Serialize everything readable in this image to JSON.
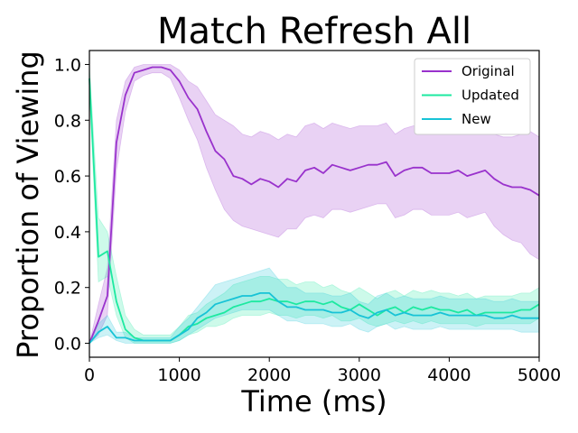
{
  "chart_data": {
    "type": "line",
    "title": "Match Refresh All",
    "xlabel": "Time (ms)",
    "ylabel": "Proportion of Viewing",
    "xlim": [
      0,
      5000
    ],
    "ylim": [
      -0.05,
      1.05
    ],
    "xticks": [
      0,
      1000,
      2000,
      3000,
      4000,
      5000
    ],
    "xtick_labels": [
      "0",
      "1000",
      "2000",
      "3000",
      "4000",
      "5000"
    ],
    "yticks": [
      0.0,
      0.2,
      0.4,
      0.6,
      0.8,
      1.0
    ],
    "ytick_labels": [
      "0.0",
      "0.2",
      "0.4",
      "0.6",
      "0.8",
      "1.0"
    ],
    "grid": false,
    "legend_position": "top-right",
    "x": [
      0,
      100,
      200,
      300,
      400,
      500,
      600,
      700,
      800,
      900,
      1000,
      1100,
      1200,
      1300,
      1400,
      1500,
      1600,
      1700,
      1800,
      1900,
      2000,
      2100,
      2200,
      2300,
      2400,
      2500,
      2600,
      2700,
      2800,
      2900,
      3000,
      3100,
      3200,
      3300,
      3400,
      3500,
      3600,
      3700,
      3800,
      3900,
      4000,
      4100,
      4200,
      4300,
      4400,
      4500,
      4600,
      4700,
      4800,
      4900,
      5000
    ],
    "series": [
      {
        "name": "Original",
        "color": "#9932CC",
        "values": [
          0.0,
          0.08,
          0.17,
          0.72,
          0.89,
          0.97,
          0.98,
          0.99,
          0.99,
          0.98,
          0.94,
          0.88,
          0.84,
          0.76,
          0.69,
          0.66,
          0.6,
          0.59,
          0.57,
          0.59,
          0.58,
          0.56,
          0.59,
          0.58,
          0.62,
          0.63,
          0.61,
          0.64,
          0.63,
          0.62,
          0.63,
          0.64,
          0.64,
          0.65,
          0.6,
          0.62,
          0.63,
          0.63,
          0.61,
          0.61,
          0.61,
          0.62,
          0.6,
          0.61,
          0.62,
          0.59,
          0.57,
          0.56,
          0.56,
          0.55,
          0.53
        ],
        "lower": [
          0.0,
          0.03,
          0.1,
          0.62,
          0.83,
          0.94,
          0.96,
          0.97,
          0.97,
          0.95,
          0.88,
          0.8,
          0.73,
          0.63,
          0.55,
          0.48,
          0.44,
          0.42,
          0.41,
          0.4,
          0.39,
          0.38,
          0.41,
          0.41,
          0.45,
          0.46,
          0.45,
          0.48,
          0.48,
          0.47,
          0.48,
          0.49,
          0.5,
          0.5,
          0.45,
          0.46,
          0.48,
          0.48,
          0.46,
          0.46,
          0.46,
          0.47,
          0.45,
          0.46,
          0.47,
          0.42,
          0.39,
          0.37,
          0.36,
          0.32,
          0.3
        ],
        "upper": [
          0.0,
          0.14,
          0.27,
          0.8,
          0.94,
          0.99,
          1.0,
          1.0,
          1.0,
          1.0,
          0.98,
          0.94,
          0.92,
          0.87,
          0.82,
          0.8,
          0.78,
          0.75,
          0.74,
          0.76,
          0.75,
          0.73,
          0.75,
          0.74,
          0.78,
          0.79,
          0.77,
          0.79,
          0.78,
          0.77,
          0.78,
          0.78,
          0.78,
          0.79,
          0.75,
          0.77,
          0.78,
          0.78,
          0.76,
          0.76,
          0.76,
          0.77,
          0.75,
          0.76,
          0.77,
          0.75,
          0.74,
          0.74,
          0.75,
          0.76,
          0.74
        ]
      },
      {
        "name": "Updated",
        "color": "#1DE9A0",
        "values": [
          0.95,
          0.31,
          0.33,
          0.15,
          0.05,
          0.02,
          0.01,
          0.01,
          0.01,
          0.01,
          0.03,
          0.06,
          0.07,
          0.09,
          0.1,
          0.11,
          0.13,
          0.14,
          0.15,
          0.15,
          0.16,
          0.15,
          0.15,
          0.14,
          0.15,
          0.15,
          0.14,
          0.15,
          0.13,
          0.12,
          0.14,
          0.12,
          0.1,
          0.12,
          0.13,
          0.11,
          0.13,
          0.12,
          0.13,
          0.12,
          0.12,
          0.11,
          0.12,
          0.1,
          0.11,
          0.11,
          0.11,
          0.11,
          0.12,
          0.12,
          0.14
        ],
        "lower": [
          0.9,
          0.22,
          0.24,
          0.1,
          0.02,
          0.0,
          0.0,
          0.0,
          0.0,
          0.0,
          0.01,
          0.03,
          0.04,
          0.06,
          0.06,
          0.07,
          0.09,
          0.1,
          0.1,
          0.1,
          0.11,
          0.1,
          0.1,
          0.09,
          0.1,
          0.1,
          0.09,
          0.1,
          0.08,
          0.08,
          0.09,
          0.07,
          0.06,
          0.07,
          0.08,
          0.07,
          0.08,
          0.07,
          0.08,
          0.07,
          0.07,
          0.07,
          0.07,
          0.06,
          0.07,
          0.07,
          0.07,
          0.07,
          0.07,
          0.07,
          0.09
        ],
        "upper": [
          1.0,
          0.45,
          0.4,
          0.24,
          0.1,
          0.05,
          0.03,
          0.03,
          0.03,
          0.03,
          0.06,
          0.1,
          0.11,
          0.14,
          0.16,
          0.18,
          0.21,
          0.22,
          0.23,
          0.24,
          0.24,
          0.23,
          0.23,
          0.21,
          0.22,
          0.22,
          0.2,
          0.21,
          0.19,
          0.18,
          0.2,
          0.18,
          0.16,
          0.18,
          0.19,
          0.17,
          0.19,
          0.18,
          0.19,
          0.18,
          0.18,
          0.17,
          0.18,
          0.16,
          0.17,
          0.17,
          0.17,
          0.17,
          0.18,
          0.18,
          0.2
        ]
      },
      {
        "name": "New",
        "color": "#17C3D6",
        "values": [
          0.0,
          0.04,
          0.06,
          0.02,
          0.02,
          0.01,
          0.01,
          0.01,
          0.01,
          0.01,
          0.03,
          0.05,
          0.09,
          0.11,
          0.14,
          0.15,
          0.16,
          0.17,
          0.17,
          0.18,
          0.18,
          0.15,
          0.13,
          0.13,
          0.12,
          0.12,
          0.12,
          0.11,
          0.11,
          0.12,
          0.1,
          0.09,
          0.11,
          0.12,
          0.1,
          0.11,
          0.1,
          0.1,
          0.1,
          0.11,
          0.1,
          0.1,
          0.1,
          0.1,
          0.1,
          0.09,
          0.09,
          0.1,
          0.09,
          0.09,
          0.09
        ],
        "lower": [
          0.0,
          0.02,
          0.03,
          0.01,
          0.0,
          0.0,
          0.0,
          0.0,
          0.0,
          0.0,
          0.01,
          0.03,
          0.05,
          0.07,
          0.09,
          0.1,
          0.11,
          0.12,
          0.12,
          0.12,
          0.12,
          0.1,
          0.08,
          0.08,
          0.07,
          0.07,
          0.07,
          0.06,
          0.06,
          0.07,
          0.05,
          0.04,
          0.06,
          0.07,
          0.05,
          0.06,
          0.05,
          0.05,
          0.05,
          0.06,
          0.05,
          0.05,
          0.05,
          0.05,
          0.05,
          0.05,
          0.05,
          0.05,
          0.04,
          0.04,
          0.04
        ],
        "upper": [
          0.0,
          0.07,
          0.1,
          0.04,
          0.04,
          0.02,
          0.02,
          0.02,
          0.02,
          0.02,
          0.06,
          0.09,
          0.13,
          0.17,
          0.21,
          0.22,
          0.23,
          0.24,
          0.25,
          0.26,
          0.27,
          0.23,
          0.2,
          0.2,
          0.18,
          0.18,
          0.18,
          0.17,
          0.17,
          0.18,
          0.15,
          0.14,
          0.17,
          0.18,
          0.16,
          0.17,
          0.16,
          0.16,
          0.16,
          0.17,
          0.16,
          0.16,
          0.16,
          0.16,
          0.16,
          0.15,
          0.15,
          0.16,
          0.15,
          0.15,
          0.15
        ]
      }
    ]
  }
}
